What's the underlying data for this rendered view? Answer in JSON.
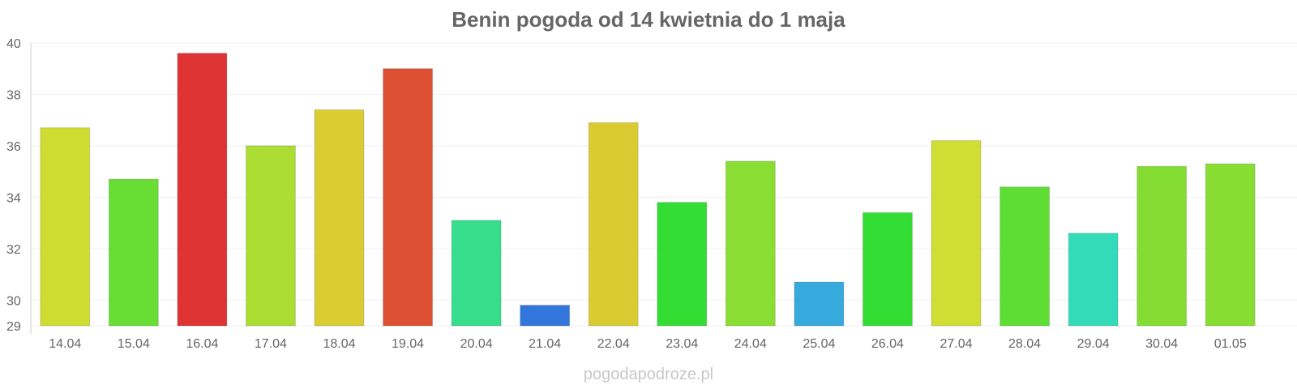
{
  "chart_data": {
    "type": "bar",
    "title": "Benin pogoda od 14 kwietnia do 1 maja",
    "xlabel": "",
    "ylabel": "",
    "categories": [
      "14.04",
      "15.04",
      "16.04",
      "17.04",
      "18.04",
      "19.04",
      "20.04",
      "21.04",
      "22.04",
      "23.04",
      "24.04",
      "25.04",
      "26.04",
      "27.04",
      "28.04",
      "29.04",
      "30.04",
      "01.05"
    ],
    "values": [
      36.7,
      34.7,
      39.6,
      36.0,
      37.4,
      39.0,
      33.1,
      29.8,
      36.9,
      33.8,
      35.4,
      30.7,
      33.4,
      36.2,
      34.4,
      32.6,
      35.2,
      35.3
    ],
    "colors": [
      "#cfdd33",
      "#68dd33",
      "#dd3333",
      "#abdd33",
      "#dacc33",
      "#dd5033",
      "#36dd8b",
      "#3377dd",
      "#dacb33",
      "#34dd33",
      "#8add33",
      "#36a9dd",
      "#34dd33",
      "#d0dd33",
      "#5edd33",
      "#34dbb9",
      "#85dd33",
      "#88dd33"
    ],
    "ylim": [
      29,
      40
    ],
    "yticks": [
      29,
      30,
      32,
      34,
      36,
      38,
      40
    ],
    "grid": true,
    "legend": "none"
  },
  "footer": {
    "credit": "pogodapodroze.pl"
  }
}
